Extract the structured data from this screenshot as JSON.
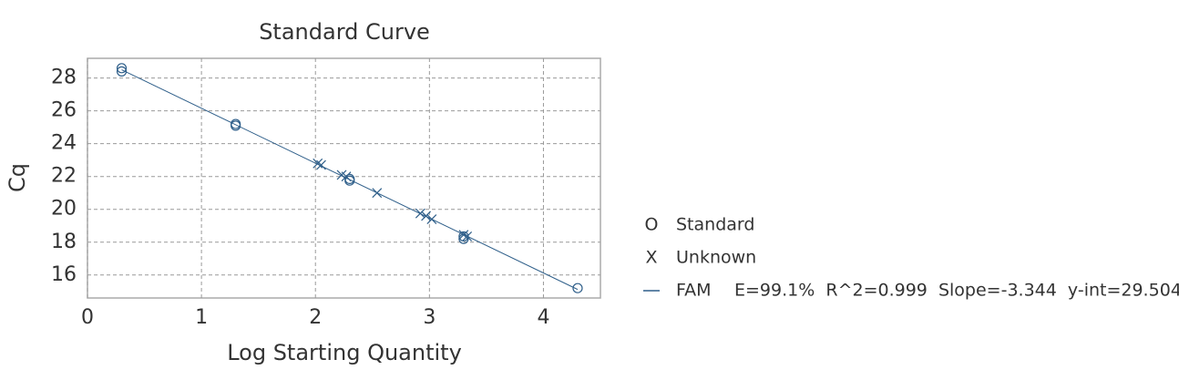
{
  "chart_data": {
    "type": "scatter",
    "title": "Standard Curve",
    "xlabel": "Log Starting Quantity",
    "ylabel": "Cq",
    "xlim": [
      0,
      4.5
    ],
    "ylim": [
      14.6,
      29.2
    ],
    "xticks": [
      0,
      1,
      2,
      3,
      4
    ],
    "yticks": [
      16,
      18,
      20,
      22,
      24,
      26,
      28
    ],
    "grid": true,
    "series": [
      {
        "name": "Standard",
        "symbol": "O",
        "color": "#2f5f8a",
        "x": [
          0.3,
          0.3,
          1.3,
          1.3,
          2.3,
          2.3,
          3.3,
          3.3,
          4.3
        ],
        "y": [
          28.6,
          28.4,
          25.2,
          25.1,
          21.85,
          21.75,
          18.35,
          18.2,
          15.2
        ]
      },
      {
        "name": "Unknown",
        "symbol": "X",
        "color": "#2f5f8a",
        "x": [
          2.02,
          2.05,
          2.23,
          2.27,
          2.54,
          2.92,
          2.97,
          3.02,
          3.3,
          3.33
        ],
        "y": [
          22.8,
          22.7,
          22.1,
          22.0,
          21.0,
          19.75,
          19.6,
          19.4,
          18.45,
          18.35
        ]
      }
    ],
    "fit": {
      "name": "FAM",
      "stats": "E=99.1%  R^2=0.999  Slope=-3.344  y-int=29.504",
      "color": "#2f5f8a",
      "x": [
        0.3,
        4.3
      ],
      "y": [
        28.5,
        15.12
      ]
    }
  }
}
